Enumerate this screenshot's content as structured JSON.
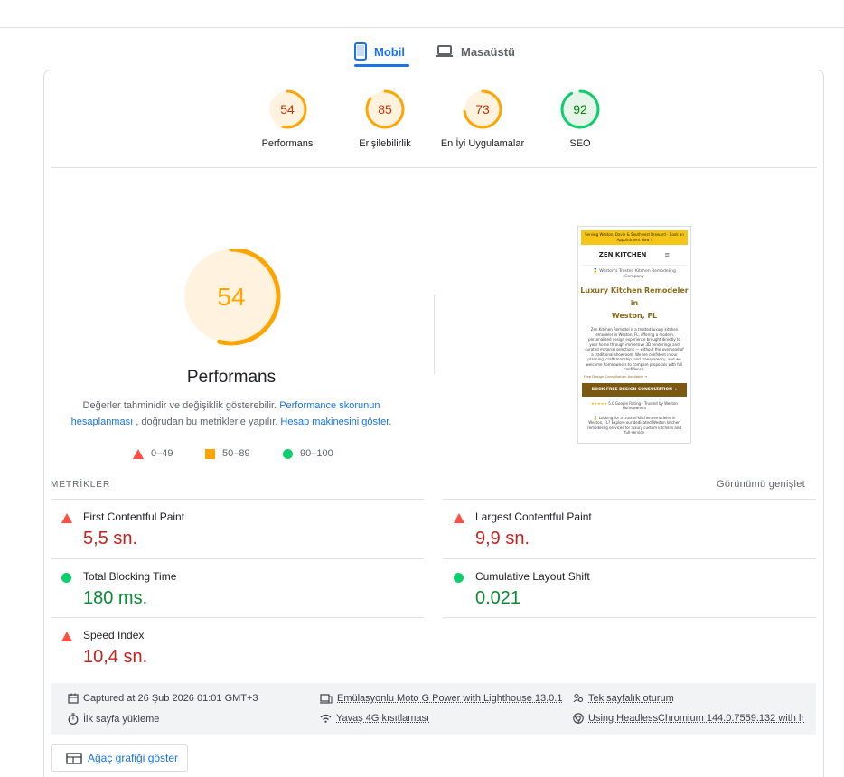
{
  "tabs": [
    {
      "label": "Mobil",
      "active": true
    },
    {
      "label": "Masaüstü",
      "active": false
    }
  ],
  "scores": [
    {
      "label": "Performans",
      "value": "54",
      "fraction": 0.54,
      "color": "#ffa400",
      "bg": "#fff3e0",
      "text": "#c33300"
    },
    {
      "label": "Erişilebilirlik",
      "value": "85",
      "fraction": 0.85,
      "color": "#ffa400",
      "bg": "#fff3e0",
      "text": "#c33300"
    },
    {
      "label": "En İyi Uygulamalar",
      "value": "73",
      "fraction": 0.73,
      "color": "#ffa400",
      "bg": "#fff3e0",
      "text": "#c33300"
    },
    {
      "label": "SEO",
      "value": "92",
      "fraction": 0.92,
      "color": "#0cce6b",
      "bg": "#e6f4ea",
      "text": "#008800"
    }
  ],
  "performance": {
    "score": "54",
    "fraction": 0.54,
    "title": "Performans",
    "desc_1": "Değerler tahminidir ve değişiklik gösterebilir.",
    "link_1": "Performance skorunun hesaplanması",
    "desc_2": ", doğrudan bu metriklerle yapılır.",
    "link_2": "Hesap makinesini göster."
  },
  "legend": {
    "fail": "0–49",
    "average": "50–89",
    "pass": "90–100"
  },
  "preview": {
    "banner": "Serving Weston, Davie & Southwest Broward · Book an Appointment Now !",
    "logo": "ZEN KITCHEN",
    "tagline": "🏅 Weston's Trusted Kitchen Remodeling Company",
    "heading_1": "Luxury Kitchen Remodeler in",
    "heading_2": "Weston, FL",
    "body": "Zen Kitchen Remodel is a trusted luxury kitchen remodeler in Weston, FL, offering a modern, personalized design experience brought directly to your home through immersive 3D renderings and curated material selections — without the overhead of a traditional showroom. We are confident in our planning, craftsmanship, and transparency, and we welcome homeowners to compare proposals with full confidence.",
    "link": "Free Design Consultation Available →",
    "button": "BOOK FREE DESIGN CONSULTATION ➜",
    "stars": "★★★★★",
    "rating": "5.0 Google Rating · Trusted by Weston Homeowners",
    "tail": "🏅 Looking for a trusted kitchen remodeler in Weston, FL? Explore our dedicated Weston kitchen remodeling services for luxury custom kitchens and full-service"
  },
  "metrics": {
    "title": "METRİKLER",
    "expand": "Görünümü genişlet",
    "items": [
      {
        "name": "First Contentful Paint",
        "value": "5,5 sn.",
        "status": "fail"
      },
      {
        "name": "Largest Contentful Paint",
        "value": "9,9 sn.",
        "status": "fail"
      },
      {
        "name": "Total Blocking Time",
        "value": "180 ms.",
        "status": "pass"
      },
      {
        "name": "Cumulative Layout Shift",
        "value": "0.021",
        "status": "pass"
      },
      {
        "name": "Speed Index",
        "value": "10,4 sn.",
        "status": "fail"
      }
    ]
  },
  "info": {
    "captured": "Captured at 26 Şub 2026 01:01 GMT+3",
    "first_load": "İlk sayfa yükleme",
    "emulation": "Emülasyonlu Moto G Power with Lighthouse 13.0.1",
    "throttle": "Yavaş 4G kısıtlaması",
    "session": "Tek sayfalık oturum",
    "browser": "Using HeadlessChromium 144.0.7559.132 with lr"
  },
  "tree_button": "Ağaç grafiği göster",
  "colors": {
    "accent": "#1a73e8",
    "fail": "#ff4e42",
    "average": "#ffa400",
    "pass": "#0cce6b"
  }
}
